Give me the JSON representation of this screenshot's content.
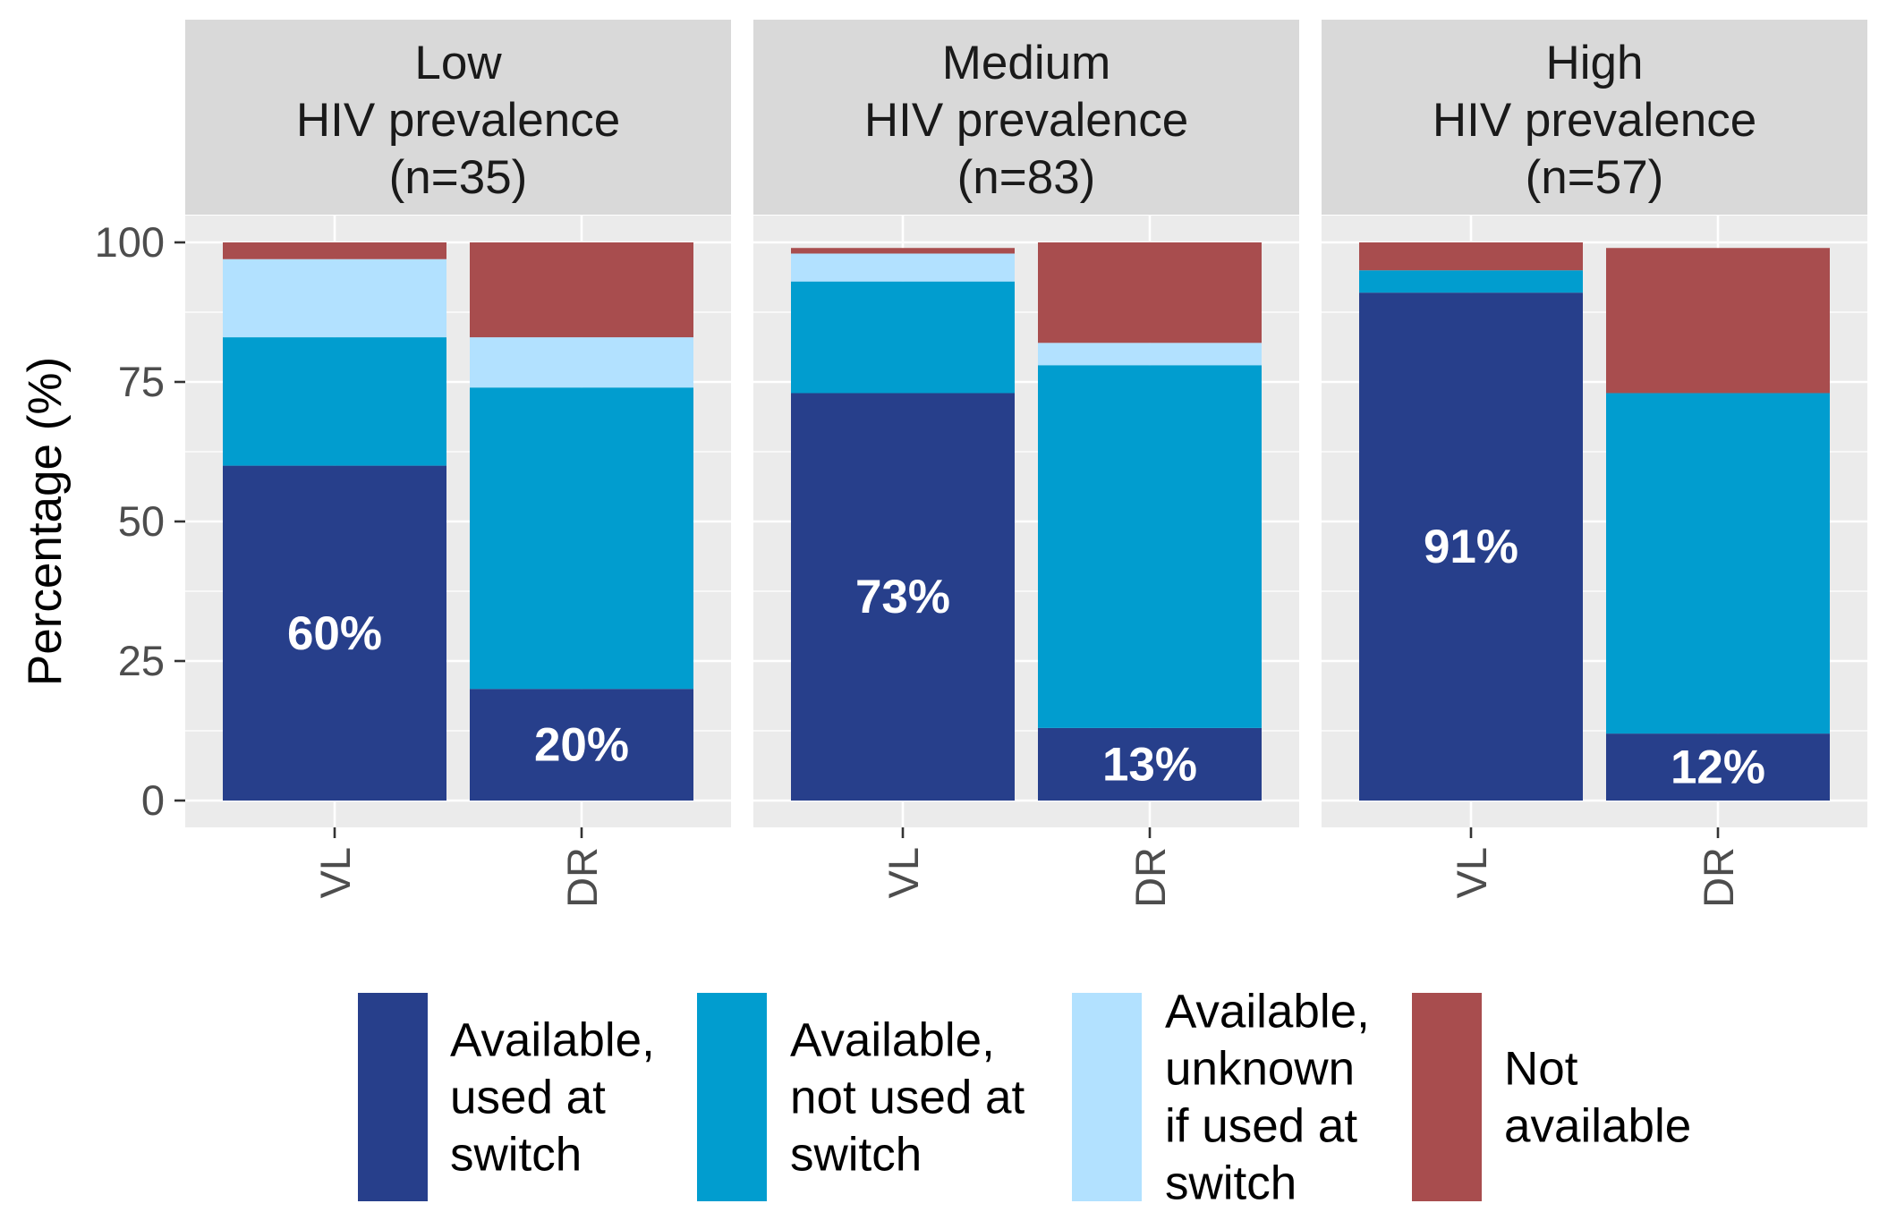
{
  "chart_data": {
    "type": "bar",
    "stacked": true,
    "facets": [
      {
        "title_lines": [
          "Low",
          "HIV prevalence",
          "(n=35)"
        ],
        "categories": [
          "VL",
          "DR"
        ],
        "series": [
          {
            "name": "Available, used at switch",
            "values": [
              60,
              20
            ]
          },
          {
            "name": "Available, not used at switch",
            "values": [
              23,
              54
            ]
          },
          {
            "name": "Available, unknown if used at switch",
            "values": [
              14,
              9
            ]
          },
          {
            "name": "Not available",
            "values": [
              3,
              17
            ]
          }
        ],
        "bar_labels": [
          "60%",
          "20%"
        ]
      },
      {
        "title_lines": [
          "Medium",
          "HIV prevalence",
          "(n=83)"
        ],
        "categories": [
          "VL",
          "DR"
        ],
        "series": [
          {
            "name": "Available, used at switch",
            "values": [
              73,
              13
            ]
          },
          {
            "name": "Available, not used at switch",
            "values": [
              20,
              65
            ]
          },
          {
            "name": "Available, unknown if used at switch",
            "values": [
              5,
              4
            ]
          },
          {
            "name": "Not available",
            "values": [
              1,
              18
            ]
          }
        ],
        "bar_labels": [
          "73%",
          "13%"
        ]
      },
      {
        "title_lines": [
          "High",
          "HIV prevalence",
          "(n=57)"
        ],
        "categories": [
          "VL",
          "DR"
        ],
        "series": [
          {
            "name": "Available, used at switch",
            "values": [
              91,
              12
            ]
          },
          {
            "name": "Available, not used at switch",
            "values": [
              4,
              61
            ]
          },
          {
            "name": "Available, unknown if used at switch",
            "values": [
              0,
              0
            ]
          },
          {
            "name": "Not available",
            "values": [
              5,
              26
            ]
          }
        ],
        "bar_labels": [
          "91%",
          "12%"
        ]
      }
    ],
    "ylabel": "Percentage (%)",
    "xlabel": "",
    "ylim": [
      0,
      100
    ],
    "yticks": [
      0,
      25,
      50,
      75,
      100
    ],
    "grid": true,
    "legend": {
      "position": "bottom",
      "entries": [
        {
          "label_lines": [
            "Available,",
            "used at",
            "switch"
          ],
          "color": "#273F8B"
        },
        {
          "label_lines": [
            "Available,",
            "not used at",
            "switch"
          ],
          "color": "#019DCF"
        },
        {
          "label_lines": [
            "Available,",
            "unknown",
            "if used at",
            "switch"
          ],
          "color": "#B2E1FF"
        },
        {
          "label_lines": [
            "Not",
            "available"
          ],
          "color": "#A84D4E"
        }
      ]
    },
    "colors": {
      "used": "#273F8B",
      "not_used": "#019DCF",
      "unknown": "#B2E1FF",
      "not_available": "#A84D4E",
      "panel_bg": "#EBEBEB",
      "strip_bg": "#D9D9D9",
      "grid_major": "#FFFFFF"
    }
  }
}
